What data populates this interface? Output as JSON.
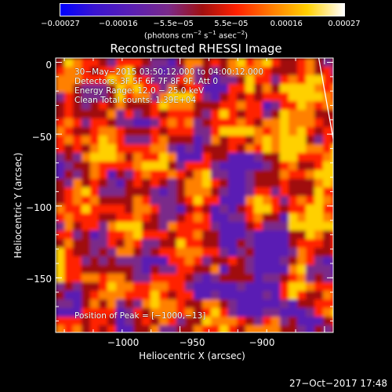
{
  "chart_data": {
    "type": "heatmap",
    "title": "Reconstructed RHESSI Image",
    "xlabel": "Heliocentric X (arcsec)",
    "ylabel": "Heliocentric Y (arcsec)",
    "xlim": [
      -1043,
      -947
    ],
    "ylim": [
      -188,
      3
    ],
    "x_ticks": [
      -1000,
      -950,
      -900
    ],
    "x_tick_labels": [
      "−1000",
      "−950",
      "−900"
    ],
    "y_ticks": [
      0,
      -50,
      -100,
      -150
    ],
    "y_tick_labels": [
      "0",
      "−50",
      "−100",
      "−150"
    ],
    "limb_line": {
      "points": [
        [
          -952,
          3
        ],
        [
          -935,
          -188
        ]
      ],
      "color": "#ffffff"
    },
    "colorbar": {
      "ticks": [
        -0.00027,
        -0.00016,
        -5.5e-05,
        5.5e-05,
        0.00016,
        0.00027
      ],
      "tick_labels": [
        "−0.00027",
        "−0.00016",
        "−5.5e−05",
        "5.5e−05",
        "0.00016",
        "0.00027"
      ],
      "units_parts": [
        "(photons cm",
        "−2",
        " s",
        "−1",
        " asec",
        "−2",
        ")"
      ],
      "colors": [
        "#0000ff",
        "#5a1fb4",
        "#7a2a8a",
        "#a01010",
        "#ff2000",
        "#ff8000",
        "#ffd000",
        "#ffffff"
      ]
    },
    "annotations": [
      "30−May−2015 03:50:12.000 to 04:00:12.000",
      "Detectors: 3F 5F 6F 7F 8F 9F, Att 0",
      "Energy Range: 12.0 − 25.0 keV",
      "Clean     Total counts: 1.39E+04"
    ],
    "peak_label": "Position of Peak = [−1000,−13]"
  },
  "footer": "27−Oct−2017 17:48"
}
